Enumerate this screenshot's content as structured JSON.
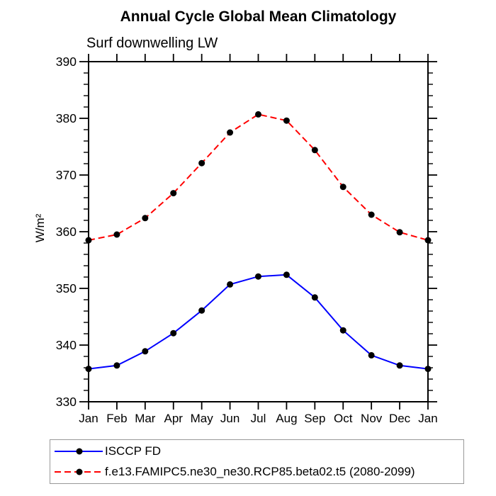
{
  "title": "Annual Cycle Global Mean Climatology",
  "subtitle": "Surf downwelling LW",
  "y_axis_label": "W/m²",
  "chart_data": {
    "type": "line",
    "title": "Annual Cycle Global Mean Climatology",
    "subtitle": "Surf downwelling LW",
    "ylabel": "W/m²",
    "xlabel": "",
    "x_categories": [
      "Jan",
      "Feb",
      "Mar",
      "Apr",
      "May",
      "Jun",
      "Jul",
      "Aug",
      "Sep",
      "Oct",
      "Nov",
      "Dec",
      "Jan"
    ],
    "ylim": [
      330,
      390
    ],
    "y_major_ticks": [
      330,
      340,
      350,
      360,
      370,
      380,
      390
    ],
    "y_minor_tick_step": 2,
    "grid": false,
    "legend_position": "bottom",
    "frame_color": "#000000",
    "series": [
      {
        "name": "ISCCP FD",
        "line_color": "#0000ff",
        "line_style": "solid",
        "marker": "circle",
        "marker_color": "#000000",
        "values": [
          335.8,
          336.4,
          338.9,
          342.1,
          346.1,
          350.7,
          352.1,
          352.4,
          348.4,
          342.6,
          338.2,
          336.4,
          335.8
        ]
      },
      {
        "name": "f.e13.FAMIPC5.ne30_ne30.RCP85.beta02.t5 (2080-2099)",
        "line_color": "#ff0000",
        "line_style": "dashed",
        "marker": "circle",
        "marker_color": "#000000",
        "values": [
          358.5,
          359.5,
          362.4,
          366.8,
          372.1,
          377.5,
          380.7,
          379.6,
          374.4,
          367.9,
          363.0,
          359.9,
          358.5
        ]
      }
    ]
  }
}
